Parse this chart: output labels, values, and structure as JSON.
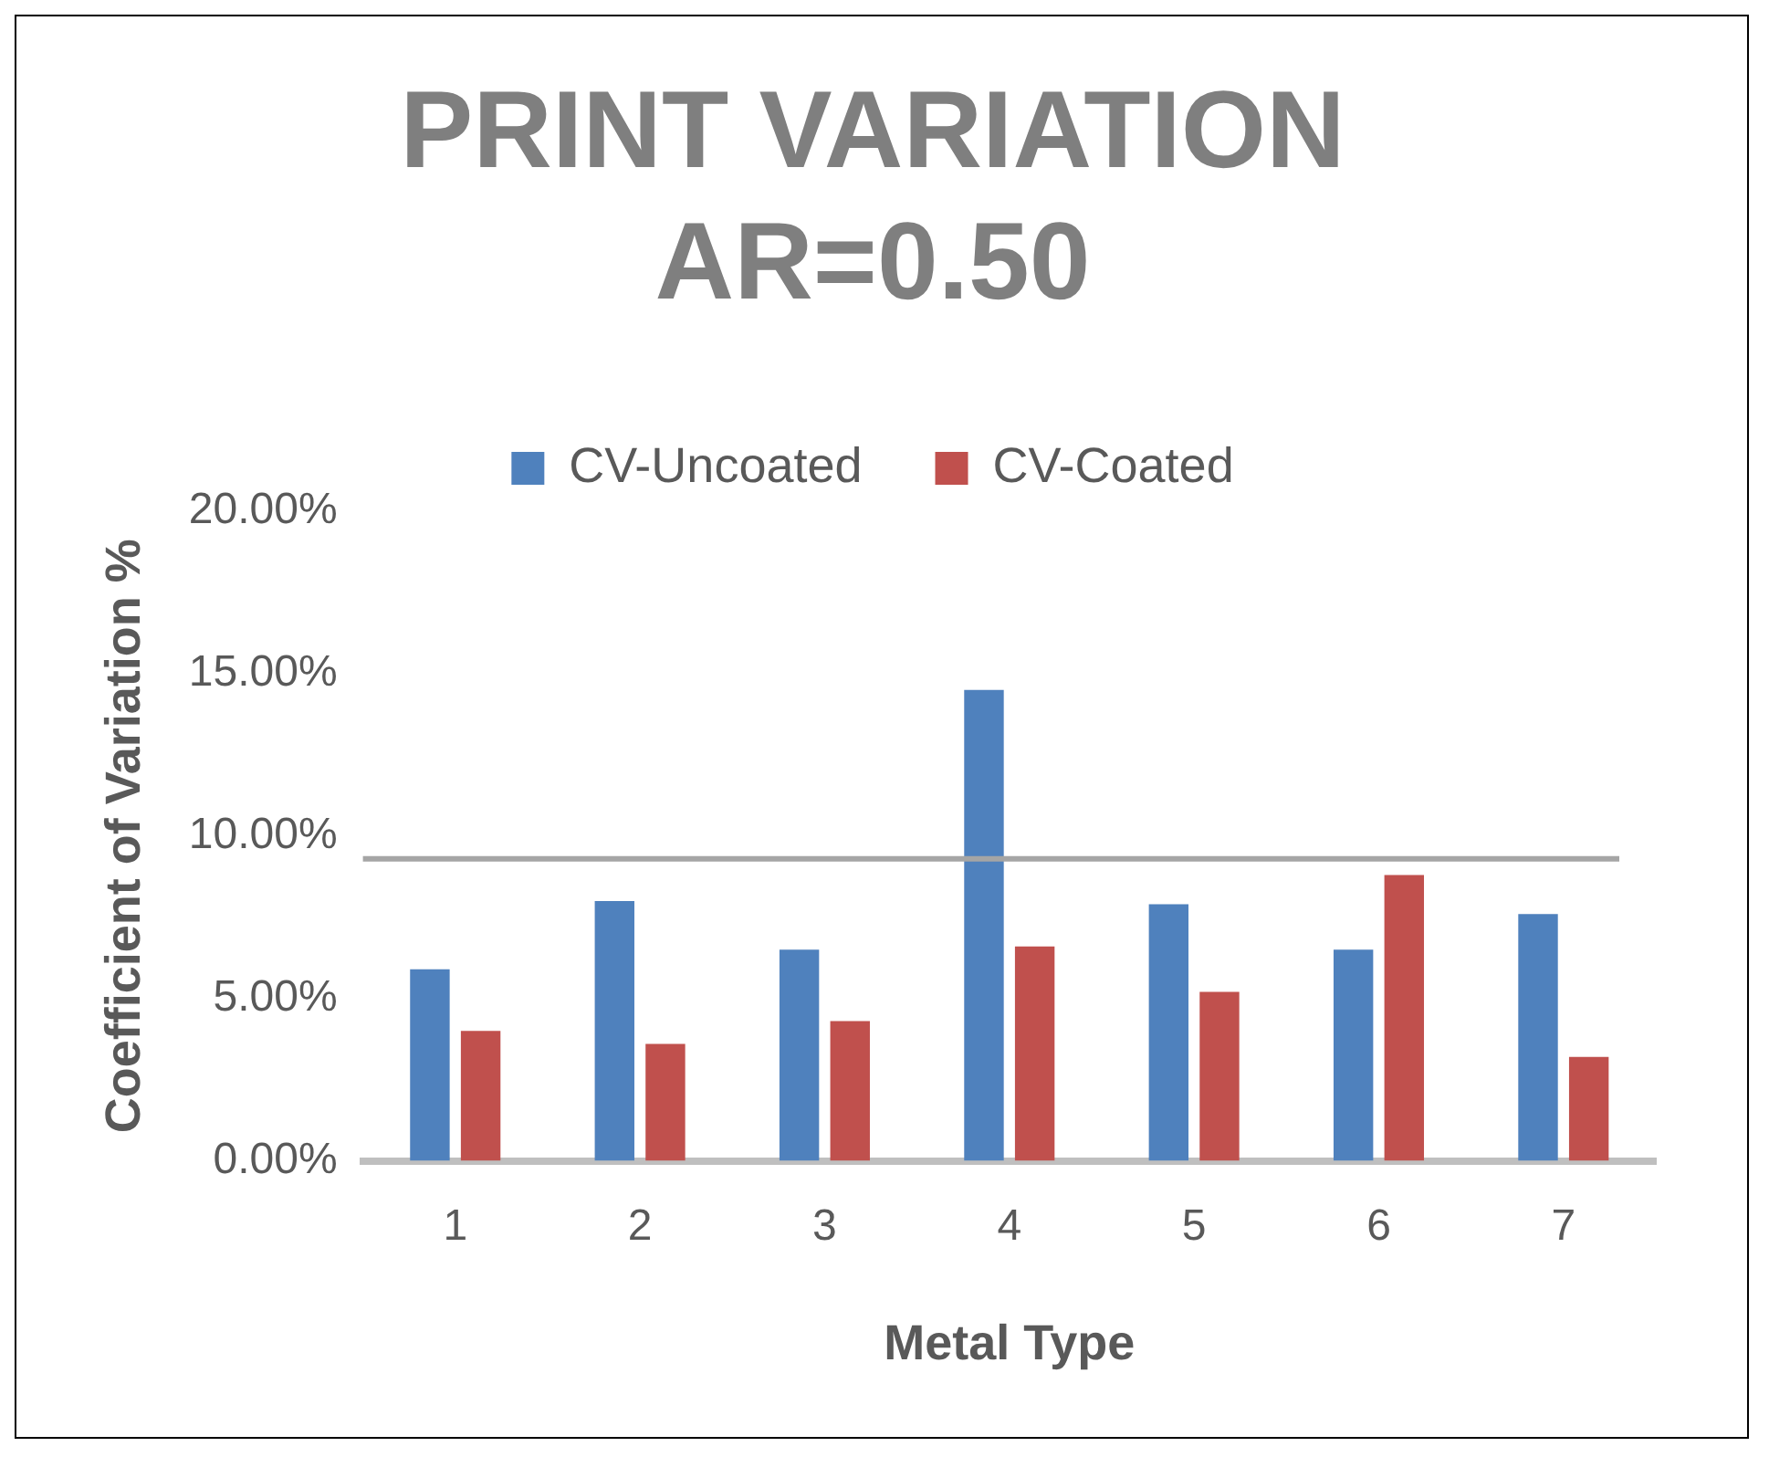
{
  "chart_data": {
    "type": "bar",
    "title": "PRINT VARIATION AR=0.50",
    "xlabel": "Metal Type",
    "ylabel": "Coefficient of Variation %",
    "categories": [
      "1",
      "2",
      "3",
      "4",
      "5",
      "6",
      "7"
    ],
    "series": [
      {
        "name": "CV-Uncoated",
        "color": "#4f81bd",
        "values": [
          5.9,
          8.0,
          6.5,
          14.5,
          7.9,
          6.5,
          7.6
        ]
      },
      {
        "name": "CV-Coated",
        "color": "#c0504d",
        "values": [
          4.0,
          3.6,
          4.3,
          6.6,
          5.2,
          8.8,
          3.2
        ]
      }
    ],
    "ylim": [
      0,
      20
    ],
    "yticks": [
      {
        "value": 0,
        "label": "0.00%"
      },
      {
        "value": 5,
        "label": "5.00%"
      },
      {
        "value": 10,
        "label": "10.00%"
      },
      {
        "value": 15,
        "label": "15.00%"
      },
      {
        "value": 20,
        "label": "20.00%"
      }
    ],
    "ref_lines": [
      {
        "axis": "y",
        "value": 9.3,
        "color": "#a5a5a5"
      }
    ],
    "grid": false,
    "legend": "top"
  }
}
